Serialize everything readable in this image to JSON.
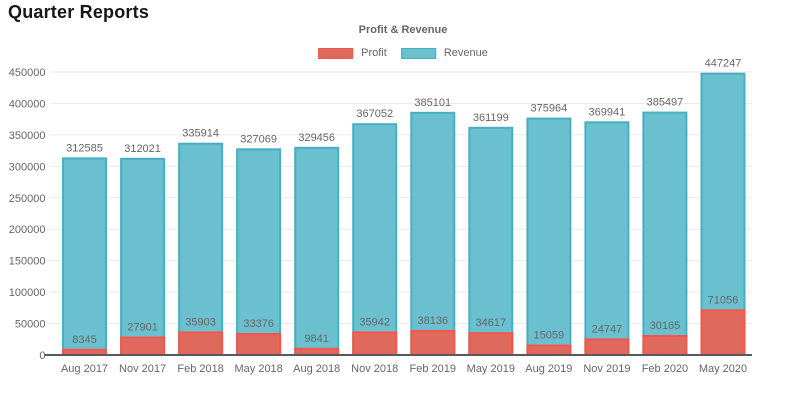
{
  "page": {
    "title": "Quarter Reports"
  },
  "chart": {
    "legend": {
      "title": "Profit & Revenue",
      "items": [
        {
          "label": "Profit",
          "fill": "#e0695e",
          "border": "#f4564a"
        },
        {
          "label": "Revenue",
          "fill": "#6ac0cf",
          "border": "#45afc3"
        }
      ]
    }
  },
  "chart_data": {
    "type": "bar",
    "title": "Profit & Revenue",
    "bar_mode": "overlay",
    "categories": [
      "Aug 2017",
      "Nov 2017",
      "Feb 2018",
      "May 2018",
      "Aug 2018",
      "Nov 2018",
      "Feb 2019",
      "May 2019",
      "Aug 2019",
      "Nov 2019",
      "Feb 2020",
      "May 2020"
    ],
    "series": [
      {
        "name": "Revenue",
        "fill": "#6ac0cf",
        "border": "#45afc3",
        "values": [
          312585,
          312021,
          335914,
          327069,
          329456,
          367052,
          385101,
          361199,
          375964,
          369941,
          385497,
          447247
        ]
      },
      {
        "name": "Profit",
        "fill": "#e0695e",
        "border": "#f4564a",
        "values": [
          8345,
          27901,
          35903,
          33376,
          9841,
          35942,
          38136,
          34617,
          15059,
          24747,
          30165,
          71056
        ]
      }
    ],
    "ylim": [
      0,
      450000
    ],
    "yticks": [
      0,
      50000,
      100000,
      150000,
      200000,
      250000,
      300000,
      350000,
      400000,
      450000
    ],
    "grid": true,
    "value_labels": true,
    "legend_position": "top",
    "xlabel": "",
    "ylabel": ""
  },
  "colors": {
    "axis_line": "#58595b",
    "grid_line": "#eaeaea",
    "tick_text": "#666666",
    "title_text": "#171717"
  }
}
